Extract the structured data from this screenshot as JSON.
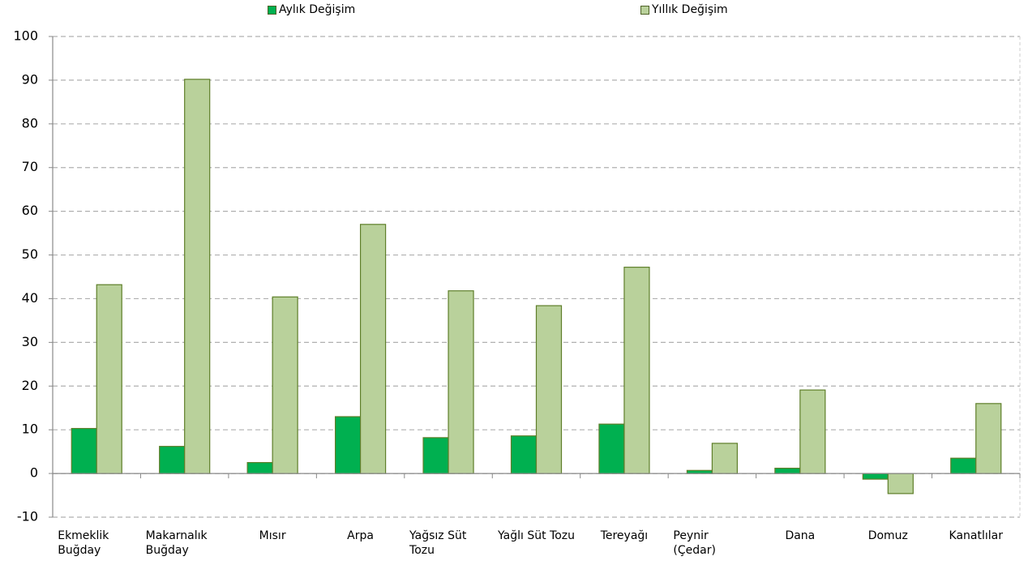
{
  "chart_data": {
    "type": "bar",
    "categories": [
      "Ekmeklik Buğday",
      "Makarnalık Buğday",
      "Mısır",
      "Arpa",
      "Yağsız Süt Tozu",
      "Yağlı Süt Tozu",
      "Tereyağı",
      "Peynir (Çedar)",
      "Dana",
      "Domuz",
      "Kanatlılar"
    ],
    "series": [
      {
        "name": "Aylık Değişim",
        "color": "#00b050",
        "values": [
          10.3,
          6.2,
          2.5,
          13.0,
          8.2,
          8.6,
          11.3,
          0.7,
          1.2,
          -1.3,
          3.5
        ]
      },
      {
        "name": "Yıllık Değişim",
        "color": "#b9d19b",
        "values": [
          43.2,
          90.2,
          40.4,
          57.0,
          41.8,
          38.4,
          47.2,
          6.9,
          19.1,
          -4.6,
          16.0
        ]
      }
    ],
    "ylim": [
      -10,
      100
    ],
    "yticks": [
      -10,
      0,
      10,
      20,
      30,
      40,
      50,
      60,
      70,
      80,
      90,
      100
    ],
    "grid": true,
    "legend": "top"
  }
}
